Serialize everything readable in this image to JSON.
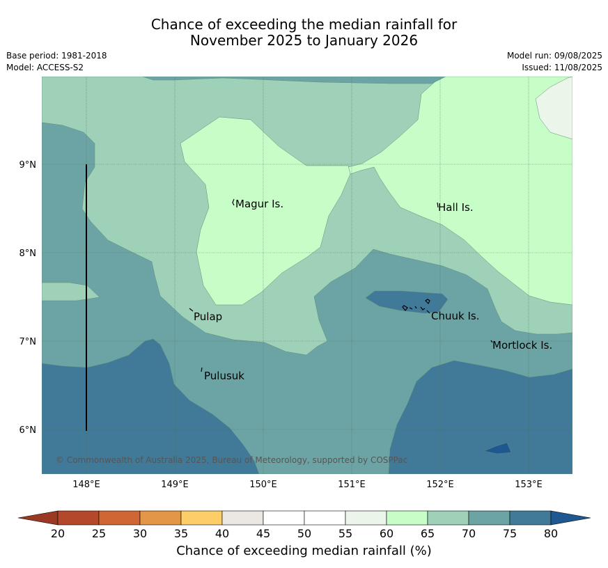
{
  "header": {
    "title_line1": "Chance of exceeding the median rainfall for",
    "title_line2": "November 2025 to January 2026",
    "base_period": "Base period: 1981-2018",
    "model": "Model: ACCESS-S2",
    "model_run": "Model run: 09/08/2025",
    "issued": "Issued: 11/08/2025"
  },
  "map": {
    "latitude_labels": [
      "9°N",
      "8°N",
      "7°N",
      "6°N"
    ],
    "longitude_labels": [
      "148°E",
      "149°E",
      "150°E",
      "151°E",
      "152°E",
      "153°E"
    ],
    "places": [
      "Magur Is.",
      "Hall Is.",
      "Pulap",
      "Chuuk Is.",
      "Mortlock Is.",
      "Pulusuk"
    ],
    "copyright": "© Commonwealth of Australia 2025, Bureau of Meteorology, supported by COSPPac",
    "category_colors": {
      "55-60": "#ebf5ea",
      "60-65": "#c7fdc7",
      "65-70": "#9ed1b8",
      "70-75": "#6ca4a6",
      "75-80": "#407a98",
      "80+": "#1f5890"
    }
  },
  "colorbar": {
    "ticks": [
      "20",
      "25",
      "30",
      "35",
      "40",
      "45",
      "50",
      "55",
      "60",
      "65",
      "70",
      "75",
      "80"
    ],
    "colors": [
      "#b3482a",
      "#cf6634",
      "#e39548",
      "#fdce68",
      "#ebe8e4",
      "#ffffff",
      "#ffffff",
      "#ebf5ea",
      "#c7fdc7",
      "#9ed1b8",
      "#6ca4a6",
      "#407a98"
    ],
    "under_color": "#9b3a22",
    "over_color": "#1f5890",
    "label": "Chance of exceeding median rainfall (%)"
  }
}
